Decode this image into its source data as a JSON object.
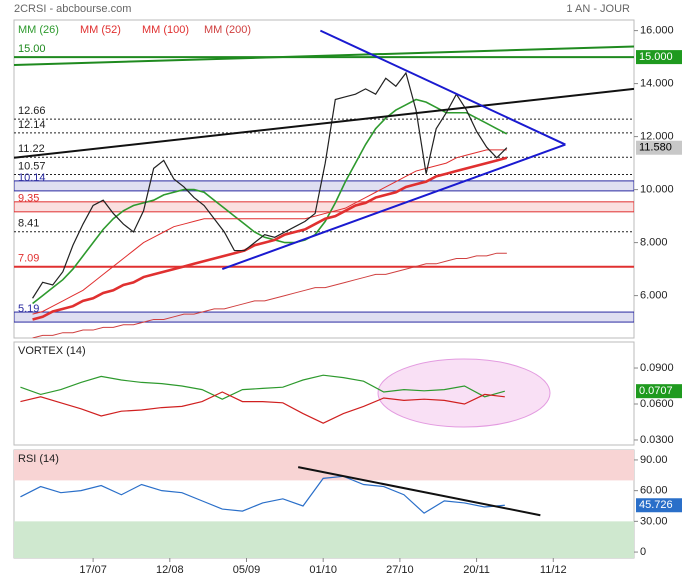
{
  "header": {
    "title": "2CRSI - abcbourse.com",
    "period": "1 AN - JOUR"
  },
  "chart_data": [
    {
      "type": "line",
      "color": "#222222",
      "xlim": [
        -19.6,
        134
      ],
      "ylim": [
        4.4,
        16.4
      ],
      "yticks": [
        {
          "value": 6,
          "label": "6.000"
        },
        {
          "value": 8,
          "label": "8.000"
        },
        {
          "value": 10,
          "label": "10.000"
        },
        {
          "value": 12,
          "label": "12.000"
        },
        {
          "value": 14,
          "label": "14.000"
        },
        {
          "value": 16,
          "label": "16.000"
        }
      ],
      "x": [
        -15,
        -12.5,
        -10,
        -7.5,
        -5,
        -2.5,
        0,
        2.5,
        5,
        7.5,
        10,
        12.5,
        15,
        17.5,
        20,
        22.5,
        25,
        27.5,
        30,
        32.5,
        35,
        37.5,
        40,
        42.5,
        45,
        47.5,
        50,
        52.5,
        55,
        57.5,
        60,
        62.5,
        65,
        67.5,
        70,
        72.5,
        75,
        77.5,
        80,
        82.5,
        85,
        87.5,
        90,
        92.5,
        95,
        97.5,
        100,
        102.5
      ],
      "values": [
        5.9,
        6.5,
        6.4,
        6.9,
        7.9,
        8.7,
        9.4,
        9.6,
        9.1,
        8.7,
        8.4,
        9.2,
        10.8,
        11.1,
        10.4,
        10.1,
        9.7,
        9.4,
        8.9,
        8.4,
        7.7,
        7.7,
        8.0,
        8.3,
        8.2,
        8.4,
        8.6,
        8.8,
        9.1,
        11.0,
        13.4,
        13.5,
        13.6,
        13.8,
        13.6,
        14.2,
        13.9,
        14.4,
        13.0,
        10.6,
        12.3,
        12.9,
        13.6,
        13.0,
        12.2,
        11.6,
        11.2,
        11.58
      ],
      "series": [
        {
          "name": "MM (26)",
          "color": "#2e9a2e",
          "width": 1.6,
          "values": [
            5.7,
            6.0,
            6.3,
            6.6,
            7.0,
            7.5,
            8.0,
            8.5,
            8.9,
            9.2,
            9.4,
            9.5,
            9.6,
            9.8,
            9.9,
            10.0,
            10.0,
            9.9,
            9.6,
            9.3,
            9.0,
            8.7,
            8.4,
            8.2,
            8.1,
            8.0,
            8.0,
            8.1,
            8.3,
            8.8,
            9.5,
            10.3,
            11.0,
            11.7,
            12.3,
            12.7,
            13.0,
            13.2,
            13.4,
            13.3,
            13.1,
            12.9,
            12.9,
            12.9,
            12.7,
            12.5,
            12.3,
            12.1
          ]
        },
        {
          "name": "MM (52)",
          "color": "#e03030",
          "width": 1,
          "values": [
            5.3,
            5.4,
            5.6,
            5.8,
            6.0,
            6.2,
            6.5,
            6.8,
            7.1,
            7.4,
            7.7,
            8.0,
            8.2,
            8.4,
            8.6,
            8.7,
            8.8,
            8.9,
            8.9,
            8.9,
            8.9,
            8.9,
            8.9,
            8.9,
            8.9,
            8.9,
            8.9,
            8.9,
            9.0,
            9.1,
            9.2,
            9.3,
            9.5,
            9.7,
            9.9,
            10.1,
            10.3,
            10.5,
            10.7,
            10.8,
            10.9,
            11.0,
            11.2,
            11.3,
            11.4,
            11.5,
            11.5,
            11.5
          ]
        },
        {
          "name": "MM (100)",
          "color": "#e03030",
          "width": 2.6,
          "values": [
            5.1,
            5.2,
            5.4,
            5.5,
            5.6,
            5.8,
            5.9,
            6.1,
            6.2,
            6.4,
            6.5,
            6.7,
            6.8,
            6.9,
            7.0,
            7.1,
            7.2,
            7.3,
            7.4,
            7.5,
            7.6,
            7.7,
            7.9,
            8.0,
            8.1,
            8.3,
            8.4,
            8.5,
            8.7,
            8.9,
            9.0,
            9.2,
            9.4,
            9.5,
            9.7,
            9.8,
            9.9,
            10.1,
            10.2,
            10.3,
            10.5,
            10.6,
            10.7,
            10.8,
            10.9,
            11.0,
            11.1,
            11.2
          ]
        },
        {
          "name": "MM (200)",
          "color": "#d04040",
          "width": 1,
          "values": [
            4.4,
            4.5,
            4.5,
            4.6,
            4.6,
            4.7,
            4.7,
            4.8,
            4.8,
            4.9,
            4.9,
            5.0,
            5.1,
            5.1,
            5.2,
            5.3,
            5.3,
            5.4,
            5.5,
            5.5,
            5.6,
            5.7,
            5.8,
            5.8,
            5.9,
            6.0,
            6.1,
            6.2,
            6.3,
            6.3,
            6.4,
            6.5,
            6.6,
            6.7,
            6.8,
            6.8,
            6.9,
            7.0,
            7.1,
            7.2,
            7.2,
            7.3,
            7.4,
            7.4,
            7.5,
            7.5,
            7.6,
            7.6
          ]
        }
      ],
      "levels": [
        {
          "value": 15,
          "label": "15.00",
          "color": "#1f8a1f",
          "style": "solid"
        },
        {
          "value": 12.66,
          "label": "12.66",
          "color": "#222222",
          "style": "dotted"
        },
        {
          "value": 12.14,
          "label": "12.14",
          "color": "#222222",
          "style": "dotted"
        },
        {
          "value": 11.22,
          "label": "11.22",
          "color": "#222222",
          "style": "dotted"
        },
        {
          "value": 10.57,
          "label": "10.57",
          "color": "#222222",
          "style": "dotted"
        },
        {
          "value": 10.14,
          "label": "10.14",
          "color": "#2a2aa0",
          "style": "band"
        },
        {
          "value": 9.35,
          "label": "9.35",
          "color": "#e03030",
          "style": "band"
        },
        {
          "value": 8.41,
          "label": "8.41",
          "color": "#222222",
          "style": "dotted"
        },
        {
          "value": 7.09,
          "label": "7.09",
          "color": "#e03030",
          "style": "solid"
        },
        {
          "value": 5.19,
          "label": "5.19",
          "color": "#2a2aa0",
          "style": "band"
        }
      ],
      "trendlines": [
        {
          "color": "#1f8a1f",
          "points": [
            [
              -19.6,
              14.7
            ],
            [
              134,
              15.4
            ]
          ]
        },
        {
          "color": "#111111",
          "points": [
            [
              -19.6,
              11.2
            ],
            [
              134,
              13.8
            ]
          ]
        },
        {
          "color": "#1a1ad0",
          "points": [
            [
              32,
              7.0
            ],
            [
              117,
              11.7
            ]
          ]
        },
        {
          "color": "#1a1ad0",
          "points": [
            [
              56.3,
              16.0
            ],
            [
              117,
              11.7
            ]
          ]
        }
      ],
      "last_values": [
        {
          "value": 15,
          "label": "15.000",
          "color": "#1f9a1f",
          "text_color": "#ffffff"
        },
        {
          "value": 11.58,
          "label": "11.580",
          "color": "#c8c8c8",
          "text_color": "#000000"
        }
      ]
    },
    {
      "type": "line",
      "title": "VORTEX (14)",
      "xlim": [
        -19.6,
        134
      ],
      "ylim": [
        0.0258,
        0.1117
      ],
      "yticks": [
        {
          "value": 0.03,
          "label": "0.0300"
        },
        {
          "value": 0.06,
          "label": "0.0600"
        },
        {
          "value": 0.09,
          "label": "0.0900"
        }
      ],
      "x": [
        -18,
        -13,
        -8,
        -3,
        2,
        7,
        12,
        17,
        22,
        27,
        32,
        37,
        42,
        47,
        52,
        57,
        62,
        67,
        72,
        77,
        82,
        87,
        92,
        97,
        102
      ],
      "series": [
        {
          "color": "#2e9a2e",
          "values": [
            0.074,
            0.068,
            0.072,
            0.078,
            0.083,
            0.08,
            0.078,
            0.077,
            0.075,
            0.072,
            0.064,
            0.072,
            0.073,
            0.074,
            0.08,
            0.084,
            0.082,
            0.079,
            0.07,
            0.072,
            0.071,
            0.072,
            0.075,
            0.066,
            0.0707
          ]
        },
        {
          "color": "#d02020",
          "values": [
            0.062,
            0.066,
            0.061,
            0.056,
            0.05,
            0.054,
            0.055,
            0.057,
            0.058,
            0.062,
            0.07,
            0.062,
            0.062,
            0.061,
            0.052,
            0.044,
            0.052,
            0.058,
            0.065,
            0.063,
            0.064,
            0.063,
            0.06,
            0.068,
            0.066
          ]
        }
      ],
      "last_values": [
        {
          "value": 0.0707,
          "label": "0.0707",
          "color": "#1f9a1f",
          "text_color": "#ffffff"
        }
      ]
    },
    {
      "type": "line",
      "title": "RSI (14)",
      "color": "#2a6fc9",
      "xlim": [
        -19.6,
        134
      ],
      "ylim": [
        -5.8,
        99.7
      ],
      "yticks": [
        0,
        {
          "value": 30,
          "label": "30.00"
        },
        {
          "value": 60,
          "label": "60.00"
        },
        {
          "value": 90,
          "label": "90.00"
        }
      ],
      "xticks": [
        {
          "value": 0,
          "label": "17/07"
        },
        {
          "value": 19,
          "label": "12/08"
        },
        {
          "value": 38,
          "label": "05/09"
        },
        {
          "value": 57,
          "label": "01/10"
        },
        {
          "value": 76,
          "label": "27/10"
        },
        {
          "value": 95,
          "label": "20/11"
        },
        {
          "value": 114,
          "label": "11/12"
        }
      ],
      "overbought": 70,
      "oversold": 30,
      "x": [
        -18,
        -13,
        -8,
        -3,
        2,
        7,
        12,
        17,
        22,
        27,
        32,
        37,
        42,
        47,
        52,
        57,
        62,
        67,
        72,
        77,
        82,
        87,
        92,
        97,
        102
      ],
      "values": [
        54,
        64,
        58,
        60,
        65,
        56,
        66,
        60,
        58,
        50,
        42,
        40,
        48,
        52,
        45,
        72,
        74,
        66,
        64,
        56,
        38,
        50,
        48,
        44,
        45.726
      ],
      "trendlines": [
        {
          "color": "#111111",
          "points": [
            [
              50.8,
              83
            ],
            [
              110.8,
              36
            ]
          ]
        }
      ],
      "last_values": [
        {
          "value": 45.726,
          "label": "45.726",
          "color": "#2a6fc9",
          "text_color": "#ffffff"
        }
      ]
    }
  ]
}
